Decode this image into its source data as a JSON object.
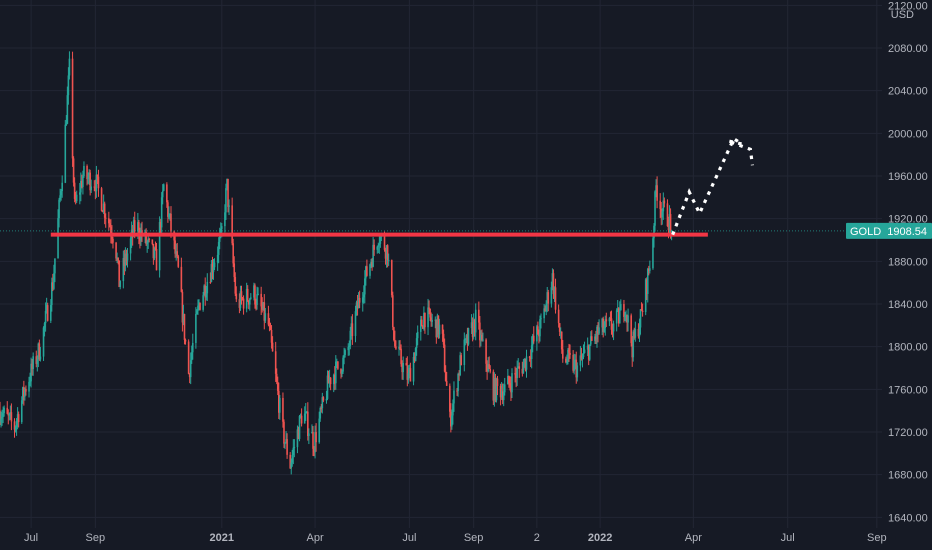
{
  "chart_data": {
    "type": "candlestick",
    "symbol": "GOLD",
    "currency": "USD",
    "last_price": 1908.54,
    "last_price_label": "1908.54",
    "ylim": [
      1630,
      2125
    ],
    "y_ticks": [
      {
        "value": 2120,
        "label": "2120.00"
      },
      {
        "value": 2080,
        "label": "2080.00"
      },
      {
        "value": 2040,
        "label": "2040.00"
      },
      {
        "value": 2000,
        "label": "2000.00"
      },
      {
        "value": 1960,
        "label": "1960.00"
      },
      {
        "value": 1920,
        "label": "1920.00"
      },
      {
        "value": 1880,
        "label": "1880.00"
      },
      {
        "value": 1840,
        "label": "1840.00"
      },
      {
        "value": 1800,
        "label": "1800.00"
      },
      {
        "value": 1760,
        "label": "1760.00"
      },
      {
        "value": 1720,
        "label": "1720.00"
      },
      {
        "value": 1680,
        "label": "1680.00"
      },
      {
        "value": 1640,
        "label": "1640.00"
      }
    ],
    "x_domain": [
      "2020-06-01",
      "2022-09-30"
    ],
    "x_ticks": [
      {
        "date": "2020-07-01",
        "label": "Jul",
        "bold": false
      },
      {
        "date": "2020-09-01",
        "label": "Sep",
        "bold": false
      },
      {
        "date": "2021-01-01",
        "label": "2021",
        "bold": true
      },
      {
        "date": "2021-04-01",
        "label": "Apr",
        "bold": false
      },
      {
        "date": "2021-07-01",
        "label": "Jul",
        "bold": false
      },
      {
        "date": "2021-09-01",
        "label": "Sep",
        "bold": false
      },
      {
        "date": "2021-11-01",
        "label": "2",
        "bold": false
      },
      {
        "date": "2022-01-01",
        "label": "2022",
        "bold": true
      },
      {
        "date": "2022-04-01",
        "label": "Apr",
        "bold": false
      },
      {
        "date": "2022-07-01",
        "label": "Jul",
        "bold": false
      },
      {
        "date": "2022-09-25",
        "label": "Sep",
        "bold": false
      }
    ],
    "price_path": [
      [
        "2020-06-01",
        1740
      ],
      [
        "2020-06-15",
        1725
      ],
      [
        "2020-06-25",
        1760
      ],
      [
        "2020-07-10",
        1800
      ],
      [
        "2020-07-22",
        1860
      ],
      [
        "2020-08-01",
        1975
      ],
      [
        "2020-08-07",
        2060
      ],
      [
        "2020-08-12",
        1930
      ],
      [
        "2020-08-20",
        1960
      ],
      [
        "2020-09-01",
        1955
      ],
      [
        "2020-09-20",
        1900
      ],
      [
        "2020-09-24",
        1860
      ],
      [
        "2020-10-10",
        1915
      ],
      [
        "2020-10-30",
        1880
      ],
      [
        "2020-11-06",
        1950
      ],
      [
        "2020-11-20",
        1870
      ],
      [
        "2020-11-30",
        1775
      ],
      [
        "2020-12-10",
        1840
      ],
      [
        "2020-12-31",
        1900
      ],
      [
        "2021-01-06",
        1950
      ],
      [
        "2021-01-15",
        1840
      ],
      [
        "2021-02-01",
        1850
      ],
      [
        "2021-02-15",
        1820
      ],
      [
        "2021-03-01",
        1720
      ],
      [
        "2021-03-08",
        1690
      ],
      [
        "2021-03-20",
        1740
      ],
      [
        "2021-03-31",
        1710
      ],
      [
        "2021-04-15",
        1770
      ],
      [
        "2021-05-01",
        1790
      ],
      [
        "2021-05-15",
        1850
      ],
      [
        "2021-06-01",
        1905
      ],
      [
        "2021-06-10",
        1890
      ],
      [
        "2021-06-17",
        1800
      ],
      [
        "2021-06-30",
        1770
      ],
      [
        "2021-07-15",
        1830
      ],
      [
        "2021-08-01",
        1815
      ],
      [
        "2021-08-09",
        1730
      ],
      [
        "2021-08-20",
        1790
      ],
      [
        "2021-09-03",
        1825
      ],
      [
        "2021-09-20",
        1760
      ],
      [
        "2021-10-01",
        1760
      ],
      [
        "2021-10-20",
        1785
      ],
      [
        "2021-11-05",
        1820
      ],
      [
        "2021-11-16",
        1865
      ],
      [
        "2021-11-26",
        1790
      ],
      [
        "2021-12-10",
        1780
      ],
      [
        "2021-12-31",
        1815
      ],
      [
        "2022-01-15",
        1820
      ],
      [
        "2022-01-25",
        1840
      ],
      [
        "2022-02-01",
        1800
      ],
      [
        "2022-02-10",
        1830
      ],
      [
        "2022-02-20",
        1890
      ],
      [
        "2022-02-24",
        1950
      ],
      [
        "2022-03-01",
        1930
      ],
      [
        "2022-03-08",
        1920
      ],
      [
        "2022-03-11",
        1908.54
      ]
    ],
    "support_line": {
      "value": 1905,
      "from": "2020-07-20",
      "to": "2022-04-15",
      "color": "#f23645"
    },
    "projection_path": [
      [
        "2022-03-12",
        1905
      ],
      [
        "2022-03-28",
        1945
      ],
      [
        "2022-04-07",
        1925
      ],
      [
        "2022-05-10",
        1995
      ],
      [
        "2022-05-18",
        1990
      ],
      [
        "2022-05-04",
        1993
      ],
      [
        "2022-05-26",
        1985
      ],
      [
        "2022-05-28",
        1970
      ]
    ],
    "grid": true,
    "colors": {
      "background": "#161a25",
      "grid": "#222634",
      "up_candle": "#26a69a",
      "down_candle": "#ef5350",
      "axis_text": "#b2b5be",
      "badge": "#26a69a",
      "projection": "#ffffff",
      "price_line": "#26a69a"
    }
  }
}
